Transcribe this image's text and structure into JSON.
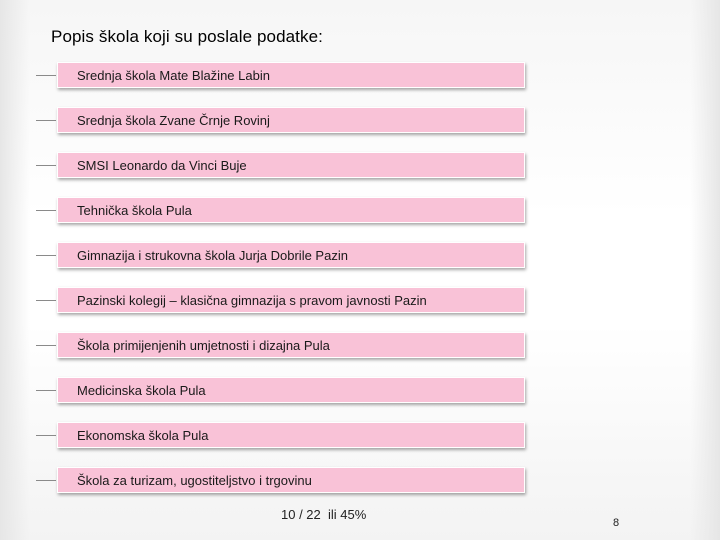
{
  "slide": {
    "title": "Popis škola koji su poslale podatke:",
    "schools": [
      "Srednja škola Mate Blažine Labin",
      "Srednja škola Zvane Črnje Rovinj",
      "SMSI Leonardo da Vinci Buje",
      "Tehnička škola Pula",
      "Gimnazija i strukovna škola Jurja Dobrile Pazin",
      "Pazinski kolegij – klasična gimnazija s pravom javnosti Pazin",
      "Škola primijenjenih umjetnosti i dizajna Pula",
      "Medicinska škola Pula",
      "Ekonomska škola Pula",
      "Škola za turizam, ugostiteljstvo i trgovinu"
    ],
    "stat": "10 / 22  ili 45%",
    "page_number": "8"
  },
  "colors": {
    "item_fill": "#f9c2d7",
    "connector": "#8a8a8a"
  }
}
